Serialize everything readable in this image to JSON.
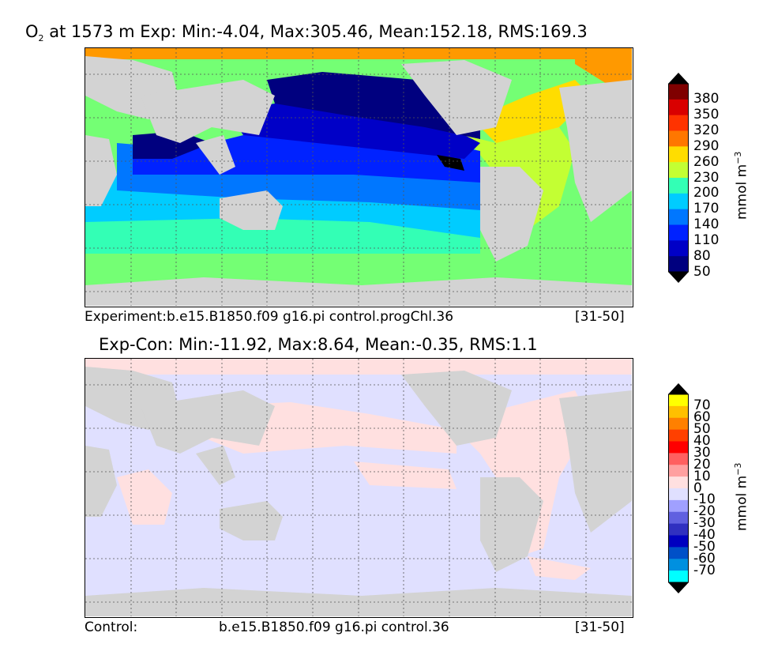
{
  "top_panel": {
    "title_var": "O",
    "title_sub": "2",
    "title_rest": " at 1573 m Exp: Min:-4.04, Max:305.46, Mean:152.18, RMS:169.3",
    "caption_left": "Experiment:b.e15.B1850.f09 g16.pi control.progChl.36",
    "caption_right": "[31-50]",
    "colorbar": {
      "unit_main": "mmol m",
      "unit_sup": "−3",
      "ticks": [
        "380",
        "350",
        "320",
        "290",
        "260",
        "230",
        "200",
        "170",
        "140",
        "110",
        "80",
        "50"
      ],
      "colors": [
        "#7f0000",
        "#d90000",
        "#ff3300",
        "#ff7700",
        "#ffdd00",
        "#c3ff33",
        "#33ffb5",
        "#00ccff",
        "#0077ff",
        "#0022ff",
        "#0000c7",
        "#00007f"
      ],
      "over_color": "#000000",
      "under_color": "#000000"
    }
  },
  "bottom_panel": {
    "title": "Exp-Con: Min:-11.92, Max:8.64, Mean:-0.35, RMS:1.1",
    "caption_left": "Control:",
    "caption_mid": "b.e15.B1850.f09 g16.pi control.36",
    "caption_right": "[31-50]",
    "colorbar": {
      "unit_main": "mmol m",
      "unit_sup": "−3",
      "ticks": [
        "70",
        "60",
        "50",
        "40",
        "30",
        "20",
        "10",
        "0",
        "-10",
        "-20",
        "-30",
        "-40",
        "-50",
        "-60",
        "-70"
      ],
      "colors": [
        "#ffff00",
        "#ffc000",
        "#ff8000",
        "#ff4000",
        "#ff0000",
        "#ff6060",
        "#ffa0a0",
        "#ffe0e0",
        "#e0e0ff",
        "#a0a0ff",
        "#6060e0",
        "#3030c0",
        "#0000c0",
        "#0050c8",
        "#0090e0",
        "#00ffff"
      ],
      "over_color": "#000000",
      "under_color": "#000000"
    }
  }
}
